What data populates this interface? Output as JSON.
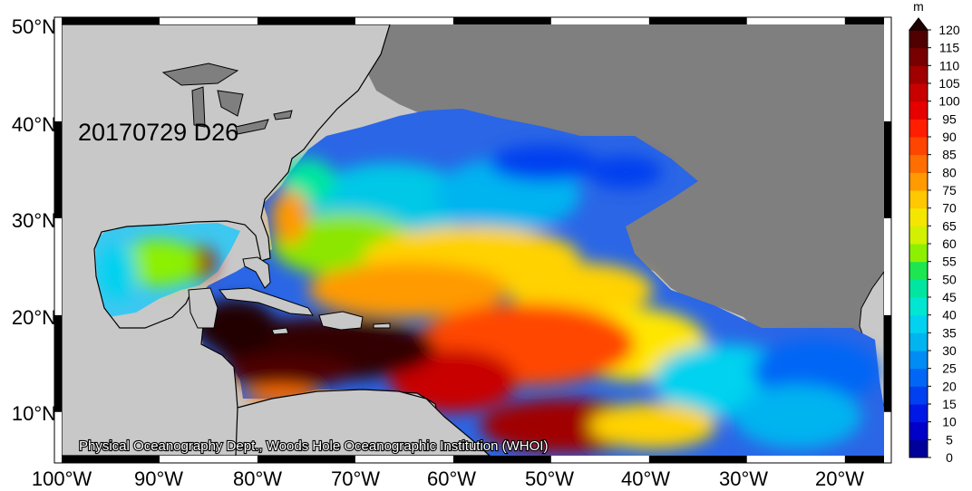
{
  "map": {
    "date_label": "20170729 D26",
    "credit": "Physical Oceanography Dept., Woods Hole Oceanographic Institution (WHOI)",
    "colors": {
      "land": "#c8c8c8",
      "no_data": "#7f7f7f",
      "coast": "#000000"
    }
  },
  "axes": {
    "lon_labels": [
      "100°W",
      "90°W",
      "80°W",
      "70°W",
      "60°W",
      "50°W",
      "40°W",
      "30°W",
      "20°W"
    ],
    "lat_labels": [
      "50°N",
      "40°N",
      "30°N",
      "20°N",
      "10°N"
    ]
  },
  "colorbar": {
    "unit": "m",
    "ticks": [
      "0",
      "5",
      "10",
      "15",
      "20",
      "25",
      "30",
      "35",
      "40",
      "45",
      "50",
      "55",
      "60",
      "65",
      "70",
      "75",
      "80",
      "85",
      "90",
      "95",
      "100",
      "105",
      "110",
      "115",
      "120"
    ],
    "colors": [
      "#00009a",
      "#0000c8",
      "#0018e6",
      "#0040f0",
      "#0066f5",
      "#008cf5",
      "#00b4f0",
      "#00d2ef",
      "#00e6d2",
      "#00e6a0",
      "#1ee650",
      "#8cf000",
      "#d2f000",
      "#f5e600",
      "#ffc800",
      "#ff9a00",
      "#ff6e00",
      "#ff4600",
      "#ff1e00",
      "#e60000",
      "#c80000",
      "#a00000",
      "#780000",
      "#500000"
    ]
  }
}
